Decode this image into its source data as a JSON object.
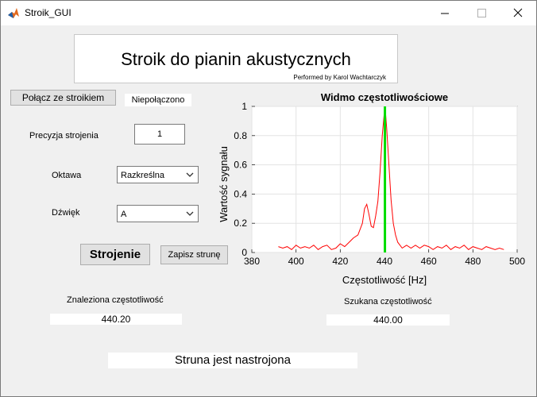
{
  "window": {
    "title": "Stroik_GUI",
    "icon": "matlab-icon"
  },
  "header": {
    "title": "Stroik do pianin akustycznych",
    "credit": "Performed by Karol Wachtarczyk"
  },
  "connect": {
    "button_label": "Połącz ze stroikiem",
    "status": "Niepołączono"
  },
  "precision": {
    "label": "Precyzja strojenia",
    "value": "1"
  },
  "octave": {
    "label": "Oktawa",
    "selected": "Razkreślna"
  },
  "note": {
    "label": "Dźwięk",
    "selected": "A"
  },
  "actions": {
    "tune_label": "Strojenie",
    "save_label": "Zapisz strunę"
  },
  "found": {
    "label": "Znaleziona częstotliwość",
    "value": "440.20"
  },
  "target": {
    "label": "Szukana częstotliwość",
    "value": "440.00"
  },
  "status_message": "Struna jest nastrojona",
  "chart_data": {
    "type": "line",
    "title": "Widmo częstotliwościowe",
    "xlabel": "Częstotliwość [Hz]",
    "ylabel": "Wartość sygnału",
    "xlim": [
      380,
      500
    ],
    "ylim": [
      0,
      1
    ],
    "x_ticks": [
      380,
      400,
      420,
      440,
      460,
      480,
      500
    ],
    "y_ticks": [
      0,
      0.2,
      0.4,
      0.6,
      0.8,
      1
    ],
    "grid": true,
    "colors": {
      "spectrum": "#ff0000",
      "marker": "#00dd00"
    },
    "marker_x": 440.2,
    "series": [
      {
        "x": [
          392,
          394,
          396,
          398,
          400,
          402,
          404,
          406,
          408,
          410,
          412,
          414,
          416,
          418,
          420,
          422,
          424,
          426,
          428,
          430,
          431,
          432,
          433,
          434,
          435,
          436,
          437,
          438,
          439,
          440,
          440.5,
          441,
          442,
          443,
          444,
          445,
          446,
          447,
          448,
          450,
          452,
          454,
          456,
          458,
          460,
          462,
          464,
          466,
          468,
          470,
          472,
          474,
          476,
          478,
          480,
          482,
          484,
          486,
          488,
          490,
          492,
          494
        ],
        "y": [
          0.04,
          0.03,
          0.04,
          0.02,
          0.05,
          0.03,
          0.04,
          0.03,
          0.05,
          0.02,
          0.04,
          0.05,
          0.02,
          0.03,
          0.06,
          0.04,
          0.07,
          0.1,
          0.12,
          0.2,
          0.3,
          0.33,
          0.26,
          0.18,
          0.17,
          0.25,
          0.35,
          0.55,
          0.8,
          0.97,
          0.95,
          0.85,
          0.6,
          0.36,
          0.2,
          0.12,
          0.07,
          0.05,
          0.03,
          0.05,
          0.03,
          0.05,
          0.03,
          0.05,
          0.04,
          0.02,
          0.04,
          0.03,
          0.05,
          0.02,
          0.04,
          0.03,
          0.05,
          0.02,
          0.04,
          0.03,
          0.02,
          0.04,
          0.03,
          0.02,
          0.03,
          0.02
        ]
      }
    ]
  }
}
